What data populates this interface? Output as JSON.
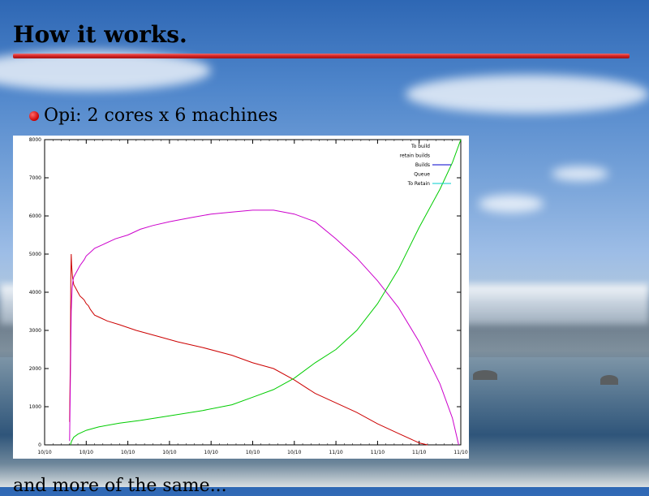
{
  "slide": {
    "title": "How it works.",
    "bullet": "Opi: 2 cores x 6 machines",
    "footer": "and more of the same..."
  },
  "colors": {
    "title_rule": "#d42222",
    "bullet": "#cc0000",
    "series_red": "#cc0000",
    "series_magenta": "#cc00cc",
    "series_green": "#00cc00",
    "series_blue": "#0000cc",
    "series_cyan": "#00cccc"
  },
  "chart_data": {
    "type": "line",
    "title": "",
    "xlabel": "",
    "ylabel": "",
    "xlim": [
      0,
      10
    ],
    "ylim": [
      0,
      8000
    ],
    "x_ticks": [
      "10/10",
      "10/10",
      "10/10",
      "10/10",
      "10/10",
      "10/10",
      "10/10",
      "11/10",
      "11/10",
      "11/10",
      "11/10"
    ],
    "y_ticks": [
      "0",
      "1000",
      "2000",
      "3000",
      "4000",
      "5000",
      "6000",
      "7000",
      "8000"
    ],
    "legend_position": "top-right",
    "legend": [
      "To build",
      "retain builds",
      "Builds",
      "Queue",
      "To Retain"
    ],
    "series": [
      {
        "name": "To build",
        "color": "#cc0000",
        "x": [
          0.6,
          0.62,
          0.63,
          0.64,
          0.65,
          0.67,
          0.7,
          0.75,
          0.8,
          0.85,
          0.9,
          0.95,
          1.0,
          1.05,
          1.1,
          1.2,
          1.3,
          1.5,
          1.8,
          2.2,
          2.7,
          3.2,
          3.8,
          4.5,
          5.0,
          5.5,
          6.0,
          6.5,
          7.0,
          7.5,
          8.0,
          8.5,
          9.0,
          9.2
        ],
        "y": [
          600,
          2400,
          4400,
          5000,
          4700,
          4400,
          4200,
          4100,
          4000,
          3900,
          3850,
          3800,
          3700,
          3650,
          3550,
          3400,
          3350,
          3250,
          3150,
          3000,
          2850,
          2700,
          2550,
          2350,
          2150,
          2000,
          1700,
          1350,
          1100,
          850,
          550,
          300,
          50,
          0
        ]
      },
      {
        "name": "Queue",
        "color": "#cc00cc",
        "x": [
          0.6,
          0.62,
          0.64,
          0.66,
          0.68,
          0.7,
          0.75,
          0.85,
          0.95,
          1.0,
          1.1,
          1.2,
          1.4,
          1.7,
          2.0,
          2.3,
          2.6,
          3.0,
          3.5,
          4.0,
          4.5,
          5.0,
          5.5,
          6.0,
          6.5,
          7.0,
          7.5,
          8.0,
          8.5,
          9.0,
          9.5,
          9.8,
          9.95
        ],
        "y": [
          100,
          1800,
          3500,
          4100,
          4300,
          4400,
          4500,
          4700,
          4850,
          4950,
          5050,
          5150,
          5250,
          5400,
          5500,
          5650,
          5750,
          5850,
          5950,
          6050,
          6100,
          6150,
          6150,
          6050,
          5850,
          5400,
          4900,
          4300,
          3600,
          2700,
          1600,
          700,
          0
        ]
      },
      {
        "name": "To Retain",
        "color": "#00cc00",
        "x": [
          0.62,
          0.65,
          0.7,
          0.8,
          1.0,
          1.3,
          1.8,
          2.3,
          3.0,
          3.8,
          4.5,
          5.0,
          5.5,
          6.0,
          6.5,
          7.0,
          7.5,
          8.0,
          8.5,
          9.0,
          9.5,
          9.8,
          10.0
        ],
        "y": [
          0,
          100,
          200,
          280,
          380,
          470,
          570,
          640,
          760,
          900,
          1050,
          1250,
          1450,
          1750,
          2150,
          2500,
          3000,
          3700,
          4600,
          5700,
          6700,
          7400,
          8000
        ]
      }
    ]
  }
}
